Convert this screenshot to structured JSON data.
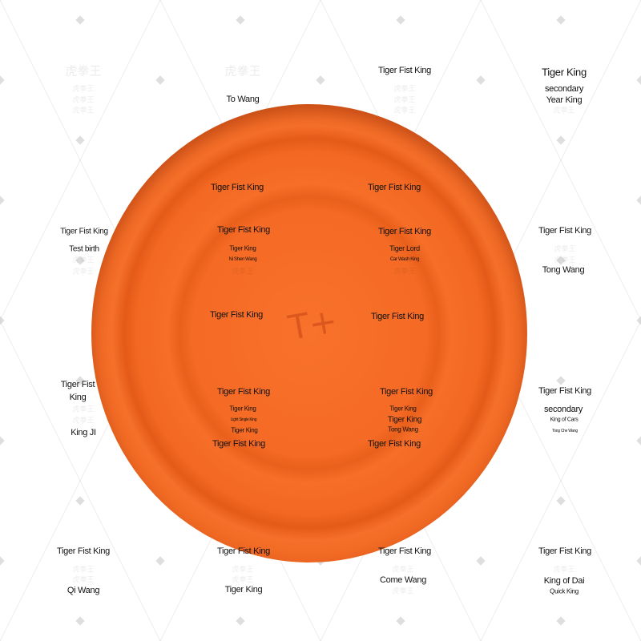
{
  "image": {
    "subject": "orange-disc",
    "colors": {
      "disc": "#f56a24",
      "background": "#ffffff",
      "text": "#111111"
    }
  },
  "watermark": "虎拳王",
  "labels": [
    "Tiger Fist King",
    "Tiger King",
    "secondary",
    "Year King",
    "To Wang",
    "Tiger Fist King",
    "Tiger Fist King",
    "Tiger Fist King",
    "Test birth",
    "Tiger Fist King",
    "Tiger King",
    "Ni Shen Wang",
    "Tiger Fist King",
    "Tiger Lord",
    "Car Wash King",
    "Tiger Fist King",
    "Tong Wang",
    "Tiger Fist King",
    "Tiger Fist King",
    "Tiger Fist",
    "King",
    "King JI",
    "Tiger Fist King",
    "Tiger King",
    "Light Single King",
    "Tiger King",
    "Tiger Fist King",
    "Tiger King",
    "Tiger King",
    "Tong Wang",
    "Tiger Fist King",
    "secondary",
    "King of Cars",
    "Tong Che Wang",
    "Tiger Fist King",
    "Tiger Fist King",
    "Tiger Fist King",
    "Tiger Fist King",
    "Tiger Fist King",
    "Tiger Fist King",
    "Qi Wang",
    "Tiger King",
    "Come Wang",
    "King of Dai",
    "Quick King"
  ]
}
